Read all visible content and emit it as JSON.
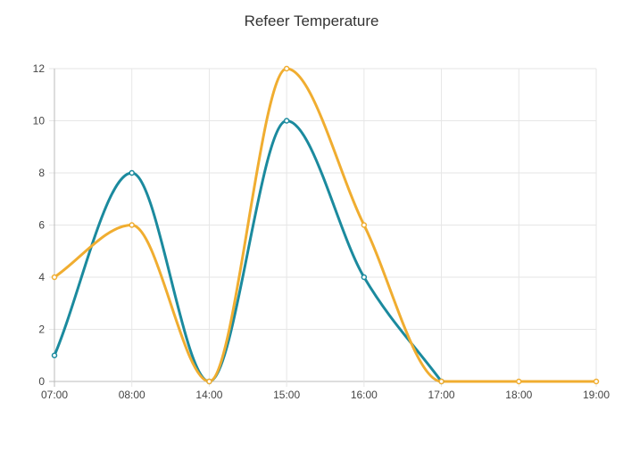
{
  "chart_data": {
    "type": "line",
    "title": "Refeer Temperature",
    "xlabel": "",
    "ylabel": "",
    "categories": [
      "07:00",
      "08:00",
      "14:00",
      "15:00",
      "16:00",
      "17:00",
      "18:00",
      "19:00"
    ],
    "series": [
      {
        "values": [
          1,
          8,
          0,
          10,
          4,
          0,
          null,
          null
        ],
        "color": "#1b8a9e"
      },
      {
        "values": [
          4,
          6,
          0,
          12,
          6,
          0,
          0,
          0
        ],
        "color": "#f0ad30"
      }
    ],
    "ylim": [
      0,
      12
    ],
    "yticks": [
      0,
      2,
      4,
      6,
      8,
      10,
      12
    ],
    "grid": true,
    "smooth": true,
    "legend": "none"
  },
  "colors": {
    "grid": "#e6e6e6",
    "axis": "#bbbbbb",
    "text": "#444444"
  }
}
